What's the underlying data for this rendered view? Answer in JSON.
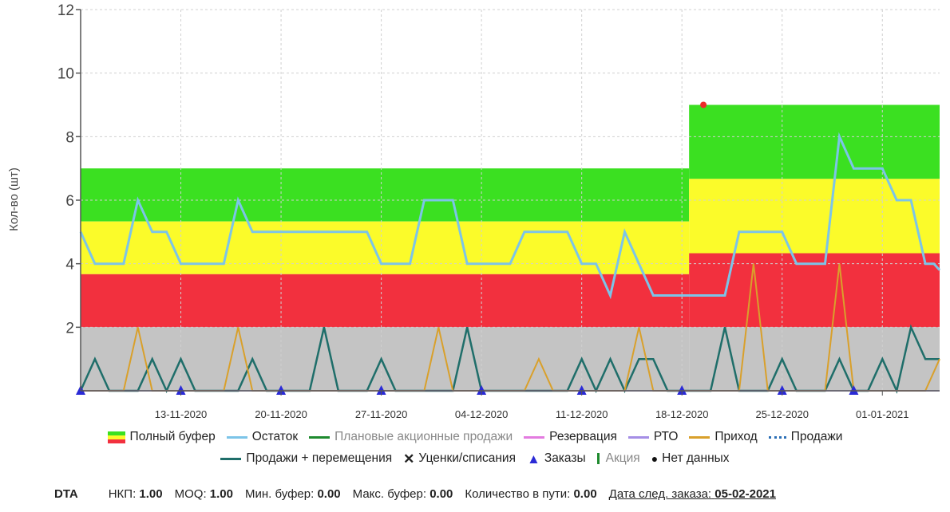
{
  "chart_data": {
    "type": "line",
    "ylabel": "Кол-во (шт)",
    "ylim": [
      0,
      12
    ],
    "yticks": [
      2,
      4,
      6,
      8,
      10,
      12
    ],
    "xlim": [
      0,
      85
    ],
    "xticks": [
      {
        "x": 7,
        "label": "13-11-2020"
      },
      {
        "x": 14,
        "label": "20-11-2020"
      },
      {
        "x": 21,
        "label": "27-11-2020"
      },
      {
        "x": 28,
        "label": "04-12-2020"
      },
      {
        "x": 35,
        "label": "11-12-2020"
      },
      {
        "x": 42,
        "label": "18-12-2020"
      },
      {
        "x": 49,
        "label": "25-12-2020"
      },
      {
        "x": 56,
        "label": "01-01-2021"
      }
    ],
    "grid": true,
    "buffer_zones": [
      {
        "x_start": 0,
        "x_end": 42.5,
        "grey": 2.0,
        "red": 3.67,
        "yellow": 5.33,
        "green": 7.0
      },
      {
        "x_start": 42.5,
        "x_end": 60,
        "grey": 2.0,
        "red": 4.33,
        "yellow": 6.67,
        "green": 9.0
      }
    ],
    "series": [
      {
        "name": "Остаток",
        "color": "#7cc4e8",
        "width": 3,
        "points": [
          [
            0,
            5
          ],
          [
            1,
            4
          ],
          [
            2,
            4
          ],
          [
            3,
            4
          ],
          [
            4,
            6
          ],
          [
            5,
            5
          ],
          [
            6,
            5
          ],
          [
            7,
            4
          ],
          [
            8,
            4
          ],
          [
            9,
            4
          ],
          [
            10,
            4
          ],
          [
            11,
            6
          ],
          [
            12,
            5
          ],
          [
            13,
            5
          ],
          [
            14,
            5
          ],
          [
            15,
            5
          ],
          [
            16,
            5
          ],
          [
            17,
            5
          ],
          [
            18,
            5
          ],
          [
            19,
            5
          ],
          [
            20,
            5
          ],
          [
            21,
            4
          ],
          [
            22,
            4
          ],
          [
            23,
            4
          ],
          [
            24,
            6
          ],
          [
            25,
            6
          ],
          [
            26,
            6
          ],
          [
            27,
            4
          ],
          [
            28,
            4
          ],
          [
            29,
            4
          ],
          [
            30,
            4
          ],
          [
            31,
            5
          ],
          [
            32,
            5
          ],
          [
            33,
            5
          ],
          [
            34,
            5
          ],
          [
            35,
            4
          ],
          [
            36,
            4
          ],
          [
            37,
            3
          ],
          [
            38,
            5
          ],
          [
            39,
            4
          ],
          [
            40,
            3
          ],
          [
            41,
            3
          ],
          [
            42,
            3
          ],
          [
            43,
            3
          ],
          [
            44,
            3
          ],
          [
            45,
            3
          ],
          [
            46,
            5
          ],
          [
            47,
            5
          ],
          [
            48,
            5
          ],
          [
            49,
            5
          ],
          [
            50,
            4
          ],
          [
            51,
            4
          ],
          [
            52,
            4
          ],
          [
            53,
            8
          ],
          [
            54,
            7
          ],
          [
            55,
            7
          ],
          [
            56,
            7
          ],
          [
            57,
            6
          ],
          [
            58,
            6
          ],
          [
            59,
            4
          ],
          [
            59.6,
            4
          ],
          [
            60,
            3.8
          ]
        ]
      },
      {
        "name": "Продажи + перемещения",
        "color": "#1f6e6a",
        "width": 2.5,
        "points": [
          [
            0,
            0
          ],
          [
            1,
            1
          ],
          [
            2,
            0
          ],
          [
            3,
            0
          ],
          [
            4,
            0
          ],
          [
            5,
            1
          ],
          [
            6,
            0
          ],
          [
            7,
            1
          ],
          [
            8,
            0
          ],
          [
            9,
            0
          ],
          [
            10,
            0
          ],
          [
            11,
            0
          ],
          [
            12,
            1
          ],
          [
            13,
            0
          ],
          [
            14,
            0
          ],
          [
            15,
            0
          ],
          [
            16,
            0
          ],
          [
            17,
            2
          ],
          [
            18,
            0
          ],
          [
            19,
            0
          ],
          [
            20,
            0
          ],
          [
            21,
            1
          ],
          [
            22,
            0
          ],
          [
            23,
            0
          ],
          [
            24,
            0
          ],
          [
            25,
            0
          ],
          [
            26,
            0
          ],
          [
            27,
            2
          ],
          [
            28,
            0
          ],
          [
            29,
            0
          ],
          [
            30,
            0
          ],
          [
            31,
            0
          ],
          [
            32,
            0
          ],
          [
            33,
            0
          ],
          [
            34,
            0
          ],
          [
            35,
            1
          ],
          [
            36,
            0
          ],
          [
            37,
            1
          ],
          [
            38,
            0
          ],
          [
            39,
            1
          ],
          [
            40,
            1
          ],
          [
            41,
            0
          ],
          [
            42,
            0
          ],
          [
            43,
            0
          ],
          [
            44,
            0
          ],
          [
            45,
            2
          ],
          [
            46,
            0
          ],
          [
            47,
            0
          ],
          [
            48,
            0
          ],
          [
            49,
            1
          ],
          [
            50,
            0
          ],
          [
            51,
            0
          ],
          [
            52,
            0
          ],
          [
            53,
            1
          ],
          [
            54,
            0
          ],
          [
            55,
            0
          ],
          [
            56,
            1
          ],
          [
            57,
            0
          ],
          [
            58,
            2
          ],
          [
            59,
            1
          ],
          [
            60,
            1
          ]
        ]
      },
      {
        "name": "Приход",
        "color": "#d9a02b",
        "width": 2,
        "points": [
          [
            0,
            0
          ],
          [
            3,
            0
          ],
          [
            4,
            2
          ],
          [
            5,
            0
          ],
          [
            10,
            0
          ],
          [
            11,
            2
          ],
          [
            12,
            0
          ],
          [
            24,
            0
          ],
          [
            25,
            2
          ],
          [
            26,
            0
          ],
          [
            31,
            0
          ],
          [
            32,
            1
          ],
          [
            33,
            0
          ],
          [
            38,
            0
          ],
          [
            39,
            2
          ],
          [
            40,
            0
          ],
          [
            46,
            0
          ],
          [
            47,
            4
          ],
          [
            48,
            0
          ],
          [
            52,
            0
          ],
          [
            53,
            4
          ],
          [
            54,
            0
          ],
          [
            59,
            0
          ],
          [
            60,
            1
          ]
        ]
      },
      {
        "name": "РТО",
        "color": "#a58ee6",
        "width": 1.5,
        "points": [
          [
            0,
            0
          ],
          [
            60,
            0
          ]
        ]
      }
    ],
    "orders_markers_x": [
      0,
      7,
      14,
      21,
      28,
      35,
      42,
      49,
      54
    ],
    "no_data_points": [
      [
        43.5,
        9.0
      ]
    ],
    "legend": [
      {
        "name": "Полный буфер",
        "type": "buffer"
      },
      {
        "name": "Остаток",
        "type": "line",
        "color": "#7cc4e8"
      },
      {
        "name": "Плановые акционные продажи",
        "type": "line",
        "color": "#1e8a2e",
        "muted": true
      },
      {
        "name": "Резервация",
        "type": "line",
        "color": "#e37be0"
      },
      {
        "name": "РТО",
        "type": "line",
        "color": "#a58ee6"
      },
      {
        "name": "Приход",
        "type": "line",
        "color": "#d9a02b"
      },
      {
        "name": "Продажи",
        "type": "dotted",
        "color": "#2b6fb6"
      },
      {
        "name": "Продажи + перемещения",
        "type": "line",
        "color": "#1f6e6a"
      },
      {
        "name": "Уценки/списания",
        "type": "cross",
        "color": "#222222"
      },
      {
        "name": "Заказы",
        "type": "triangle",
        "color": "#2a2ad6"
      },
      {
        "name": "Акция",
        "type": "bar",
        "color": "#1e8a2e",
        "muted": true
      },
      {
        "name": "Нет данных",
        "type": "dot",
        "color": "#111111"
      }
    ]
  },
  "footer": {
    "code": "DTA",
    "nkp_label": "НКП:",
    "nkp_value": "1.00",
    "moq_label": "MOQ:",
    "moq_value": "1.00",
    "minbuf_label": "Мин. буфер:",
    "minbuf_value": "0.00",
    "maxbuf_label": "Макс. буфер:",
    "maxbuf_value": "0.00",
    "transit_label": "Количество в пути:",
    "transit_value": "0.00",
    "next_order_label": "Дата след. заказа:",
    "next_order_value": "05-02-2021"
  }
}
